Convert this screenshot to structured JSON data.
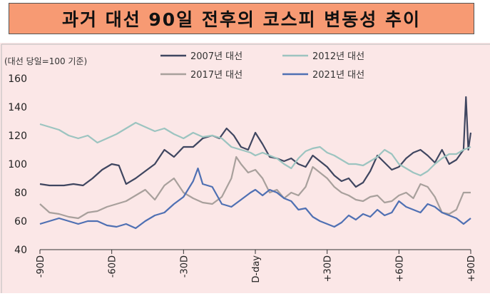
{
  "title": "과거 대선 90일 전후의 코스피 변동성 추이",
  "chart_data": {
    "type": "line",
    "ylabel": "(대선 당일=100 기준)",
    "ylim": [
      40,
      160
    ],
    "yticks": [
      40,
      60,
      80,
      100,
      120,
      140,
      160
    ],
    "xlim": [
      -90,
      90
    ],
    "xticks": [
      {
        "v": -90,
        "label": "-90D"
      },
      {
        "v": -60,
        "label": "-60D"
      },
      {
        "v": -30,
        "label": "-30D"
      },
      {
        "v": 0,
        "label": "D-day"
      },
      {
        "v": 30,
        "label": "+30D"
      },
      {
        "v": 60,
        "label": "+60D"
      },
      {
        "v": 90,
        "label": "+90D"
      }
    ],
    "legend_placement": "top",
    "series": [
      {
        "name": "2007년 대선",
        "color": "#3f4660",
        "points": [
          [
            -90,
            86
          ],
          [
            -86,
            85
          ],
          [
            -80,
            85
          ],
          [
            -76,
            86
          ],
          [
            -72,
            85
          ],
          [
            -68,
            90
          ],
          [
            -64,
            96
          ],
          [
            -60,
            100
          ],
          [
            -57,
            99
          ],
          [
            -54,
            86
          ],
          [
            -50,
            90
          ],
          [
            -46,
            95
          ],
          [
            -42,
            100
          ],
          [
            -38,
            110
          ],
          [
            -34,
            105
          ],
          [
            -30,
            112
          ],
          [
            -26,
            112
          ],
          [
            -22,
            118
          ],
          [
            -18,
            120
          ],
          [
            -15,
            118
          ],
          [
            -12,
            125
          ],
          [
            -9,
            120
          ],
          [
            -6,
            112
          ],
          [
            -3,
            110
          ],
          [
            0,
            122
          ],
          [
            3,
            114
          ],
          [
            6,
            105
          ],
          [
            9,
            104
          ],
          [
            12,
            102
          ],
          [
            15,
            104
          ],
          [
            18,
            100
          ],
          [
            21,
            98
          ],
          [
            24,
            106
          ],
          [
            27,
            102
          ],
          [
            30,
            98
          ],
          [
            33,
            92
          ],
          [
            36,
            88
          ],
          [
            39,
            90
          ],
          [
            42,
            84
          ],
          [
            45,
            87
          ],
          [
            48,
            95
          ],
          [
            51,
            106
          ],
          [
            54,
            101
          ],
          [
            57,
            96
          ],
          [
            60,
            98
          ],
          [
            63,
            104
          ],
          [
            66,
            108
          ],
          [
            69,
            110
          ],
          [
            72,
            106
          ],
          [
            75,
            101
          ],
          [
            78,
            110
          ],
          [
            81,
            100
          ],
          [
            84,
            103
          ],
          [
            87,
            110
          ],
          [
            88,
            147
          ],
          [
            89,
            110
          ],
          [
            90,
            122
          ]
        ]
      },
      {
        "name": "2012년 대선",
        "color": "#9cc4c0",
        "points": [
          [
            -90,
            128
          ],
          [
            -86,
            126
          ],
          [
            -82,
            124
          ],
          [
            -78,
            120
          ],
          [
            -74,
            118
          ],
          [
            -70,
            120
          ],
          [
            -66,
            115
          ],
          [
            -62,
            118
          ],
          [
            -58,
            121
          ],
          [
            -54,
            125
          ],
          [
            -50,
            129
          ],
          [
            -46,
            126
          ],
          [
            -42,
            123
          ],
          [
            -38,
            125
          ],
          [
            -34,
            121
          ],
          [
            -30,
            118
          ],
          [
            -26,
            122
          ],
          [
            -22,
            119
          ],
          [
            -18,
            120
          ],
          [
            -14,
            118
          ],
          [
            -10,
            112
          ],
          [
            -6,
            110
          ],
          [
            -2,
            108
          ],
          [
            0,
            106
          ],
          [
            3,
            108
          ],
          [
            6,
            106
          ],
          [
            9,
            104
          ],
          [
            12,
            100
          ],
          [
            15,
            97
          ],
          [
            18,
            104
          ],
          [
            21,
            109
          ],
          [
            24,
            111
          ],
          [
            27,
            112
          ],
          [
            30,
            108
          ],
          [
            33,
            106
          ],
          [
            36,
            103
          ],
          [
            39,
            100
          ],
          [
            42,
            100
          ],
          [
            45,
            99
          ],
          [
            48,
            102
          ],
          [
            51,
            105
          ],
          [
            54,
            110
          ],
          [
            57,
            107
          ],
          [
            60,
            100
          ],
          [
            63,
            97
          ],
          [
            66,
            94
          ],
          [
            69,
            92
          ],
          [
            72,
            95
          ],
          [
            75,
            100
          ],
          [
            78,
            104
          ],
          [
            81,
            107
          ],
          [
            84,
            107
          ],
          [
            87,
            110
          ],
          [
            90,
            112
          ]
        ]
      },
      {
        "name": "2017년 대선",
        "color": "#a8a09c",
        "points": [
          [
            -90,
            72
          ],
          [
            -86,
            66
          ],
          [
            -82,
            65
          ],
          [
            -78,
            63
          ],
          [
            -74,
            62
          ],
          [
            -70,
            66
          ],
          [
            -66,
            67
          ],
          [
            -62,
            70
          ],
          [
            -58,
            72
          ],
          [
            -54,
            74
          ],
          [
            -50,
            78
          ],
          [
            -46,
            82
          ],
          [
            -42,
            75
          ],
          [
            -38,
            85
          ],
          [
            -34,
            90
          ],
          [
            -30,
            80
          ],
          [
            -26,
            76
          ],
          [
            -22,
            73
          ],
          [
            -18,
            72
          ],
          [
            -14,
            77
          ],
          [
            -10,
            90
          ],
          [
            -8,
            105
          ],
          [
            -6,
            100
          ],
          [
            -3,
            94
          ],
          [
            0,
            96
          ],
          [
            3,
            90
          ],
          [
            6,
            80
          ],
          [
            9,
            82
          ],
          [
            12,
            76
          ],
          [
            15,
            80
          ],
          [
            18,
            78
          ],
          [
            21,
            84
          ],
          [
            24,
            98
          ],
          [
            27,
            94
          ],
          [
            30,
            90
          ],
          [
            33,
            84
          ],
          [
            36,
            80
          ],
          [
            39,
            78
          ],
          [
            42,
            75
          ],
          [
            45,
            74
          ],
          [
            48,
            77
          ],
          [
            51,
            78
          ],
          [
            54,
            73
          ],
          [
            57,
            74
          ],
          [
            60,
            78
          ],
          [
            63,
            80
          ],
          [
            66,
            76
          ],
          [
            69,
            86
          ],
          [
            72,
            84
          ],
          [
            75,
            77
          ],
          [
            78,
            66
          ],
          [
            81,
            65
          ],
          [
            84,
            68
          ],
          [
            87,
            80
          ],
          [
            90,
            80
          ]
        ]
      },
      {
        "name": "2021년 대선",
        "color": "#4f70b3",
        "points": [
          [
            -90,
            58
          ],
          [
            -86,
            60
          ],
          [
            -82,
            62
          ],
          [
            -78,
            60
          ],
          [
            -74,
            58
          ],
          [
            -70,
            60
          ],
          [
            -66,
            60
          ],
          [
            -62,
            57
          ],
          [
            -58,
            56
          ],
          [
            -54,
            58
          ],
          [
            -50,
            55
          ],
          [
            -46,
            60
          ],
          [
            -42,
            64
          ],
          [
            -38,
            66
          ],
          [
            -34,
            72
          ],
          [
            -30,
            77
          ],
          [
            -26,
            88
          ],
          [
            -24,
            97
          ],
          [
            -22,
            86
          ],
          [
            -18,
            84
          ],
          [
            -14,
            72
          ],
          [
            -10,
            70
          ],
          [
            -6,
            75
          ],
          [
            -2,
            80
          ],
          [
            0,
            82
          ],
          [
            3,
            78
          ],
          [
            6,
            82
          ],
          [
            9,
            80
          ],
          [
            12,
            76
          ],
          [
            15,
            74
          ],
          [
            18,
            68
          ],
          [
            21,
            69
          ],
          [
            24,
            63
          ],
          [
            27,
            60
          ],
          [
            30,
            58
          ],
          [
            33,
            56
          ],
          [
            36,
            59
          ],
          [
            39,
            64
          ],
          [
            42,
            61
          ],
          [
            45,
            65
          ],
          [
            48,
            63
          ],
          [
            51,
            68
          ],
          [
            54,
            64
          ],
          [
            57,
            66
          ],
          [
            60,
            74
          ],
          [
            63,
            70
          ],
          [
            66,
            68
          ],
          [
            69,
            66
          ],
          [
            72,
            72
          ],
          [
            75,
            70
          ],
          [
            78,
            66
          ],
          [
            81,
            64
          ],
          [
            84,
            62
          ],
          [
            87,
            58
          ],
          [
            90,
            62
          ]
        ]
      }
    ]
  }
}
